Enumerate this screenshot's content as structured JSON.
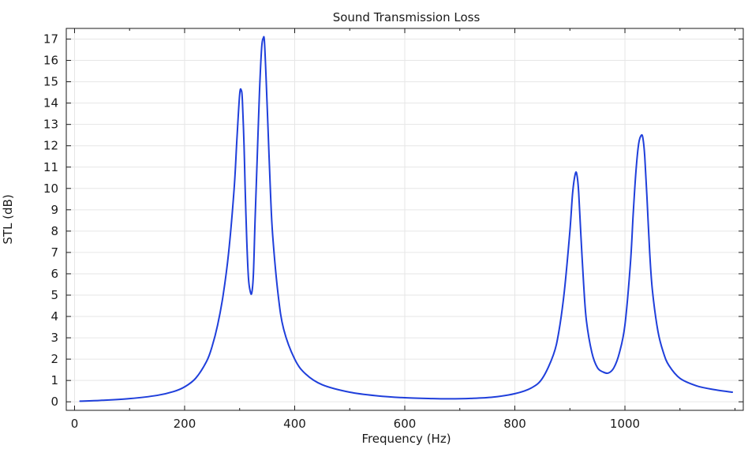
{
  "chart_data": {
    "type": "line",
    "title": "Sound Transmission Loss",
    "xlabel": "Frequency (Hz)",
    "ylabel": "STL (dB)",
    "xlim": [
      -15,
      1215
    ],
    "ylim": [
      -0.4,
      17.5
    ],
    "x_ticks": [
      0,
      200,
      400,
      600,
      800,
      1000
    ],
    "x_minor_ticks": [
      100,
      300,
      500,
      700,
      900,
      1100,
      1200
    ],
    "y_ticks": [
      0,
      1,
      2,
      3,
      4,
      5,
      6,
      7,
      8,
      9,
      10,
      11,
      12,
      13,
      14,
      15,
      16,
      17
    ],
    "grid": true,
    "series": [
      {
        "name": "STL",
        "color": "#1f3fdb",
        "x": [
          10,
          50,
          100,
          150,
          180,
          200,
          220,
          240,
          250,
          260,
          270,
          280,
          290,
          295,
          300,
          303,
          305,
          308,
          310,
          313,
          316,
          319,
          322,
          325,
          328,
          332,
          336,
          340,
          343,
          345,
          348,
          352,
          356,
          360,
          370,
          380,
          400,
          420,
          450,
          500,
          550,
          600,
          650,
          680,
          720,
          760,
          800,
          830,
          850,
          870,
          880,
          890,
          900,
          905,
          910,
          913,
          916,
          920,
          925,
          930,
          940,
          950,
          960,
          970,
          980,
          990,
          1000,
          1010,
          1015,
          1020,
          1025,
          1030,
          1033,
          1036,
          1040,
          1045,
          1050,
          1060,
          1070,
          1080,
          1100,
          1130,
          1160,
          1195
        ],
        "values": [
          0.03,
          0.07,
          0.15,
          0.3,
          0.48,
          0.7,
          1.1,
          1.9,
          2.6,
          3.6,
          5.0,
          7.0,
          10.0,
          12.3,
          14.4,
          14.6,
          14.1,
          12.0,
          10.0,
          7.5,
          5.8,
          5.2,
          5.1,
          6.0,
          8.5,
          11.5,
          14.5,
          16.6,
          17.05,
          16.9,
          15.2,
          12.5,
          9.8,
          7.8,
          5.0,
          3.4,
          2.0,
          1.3,
          0.8,
          0.45,
          0.28,
          0.19,
          0.15,
          0.14,
          0.16,
          0.22,
          0.38,
          0.65,
          1.1,
          2.2,
          3.3,
          5.2,
          8.0,
          9.8,
          10.7,
          10.6,
          9.8,
          7.8,
          5.5,
          3.8,
          2.3,
          1.6,
          1.4,
          1.35,
          1.6,
          2.3,
          3.6,
          6.5,
          8.8,
          10.8,
          12.1,
          12.5,
          12.3,
          11.5,
          9.6,
          7.0,
          5.2,
          3.3,
          2.3,
          1.7,
          1.1,
          0.75,
          0.58,
          0.45
        ]
      }
    ]
  }
}
